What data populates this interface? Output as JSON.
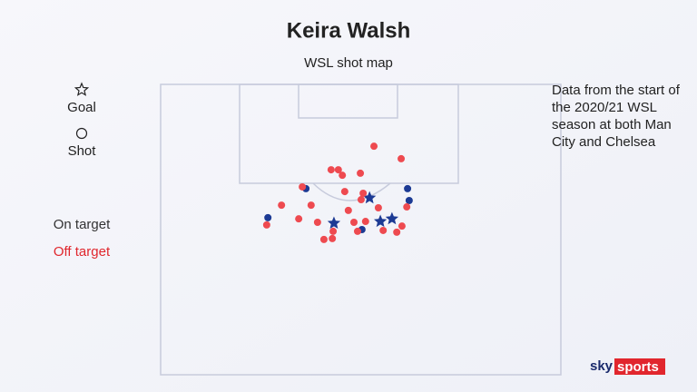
{
  "chart_data": {
    "type": "scatter",
    "title": "Keira Walsh",
    "subtitle": "WSL shot map",
    "note": "Data from the start of the 2020/21 WSL season at both Man City and Chelsea",
    "source": [
      "sky",
      "sports"
    ],
    "xlim": [
      0,
      100
    ],
    "ylim": [
      0,
      100
    ],
    "legend_markers": [
      {
        "label": "Goal",
        "marker": "star"
      },
      {
        "label": "Shot",
        "marker": "circle"
      }
    ],
    "series": [
      {
        "name": "On target",
        "color": "#1c3a94",
        "legend_color": "#333333",
        "x": [
          52.2,
          43.3,
          54.9,
          57.8,
          36.3,
          61.7,
          62.1,
          26.8,
          50.3
        ],
        "y": [
          39.1,
          47.8,
          47.2,
          46.3,
          35.9,
          35.9,
          40.0,
          45.9,
          50.0
        ],
        "markers": [
          "star",
          "star",
          "star",
          "star",
          "circle",
          "circle",
          "circle",
          "circle",
          "circle"
        ]
      },
      {
        "name": "Off target",
        "color": "#ee4a50",
        "legend_color": "#e0262d",
        "marker": "circle",
        "x": [
          53.3,
          60.1,
          42.6,
          44.4,
          45.4,
          49.9,
          35.4,
          46.0,
          50.6,
          50.1,
          37.6,
          54.4,
          61.5,
          30.2,
          46.9,
          34.5,
          26.5,
          39.2,
          43.1,
          42.9,
          40.8,
          48.3,
          51.2,
          49.2,
          55.6,
          60.3,
          59.0
        ],
        "y": [
          21.3,
          25.6,
          29.4,
          29.4,
          31.3,
          30.6,
          35.3,
          36.9,
          37.5,
          39.7,
          41.6,
          42.5,
          42.2,
          41.6,
          43.4,
          46.3,
          48.4,
          47.5,
          50.6,
          53.1,
          53.4,
          47.5,
          47.2,
          50.6,
          50.3,
          48.8,
          50.9
        ]
      }
    ]
  }
}
